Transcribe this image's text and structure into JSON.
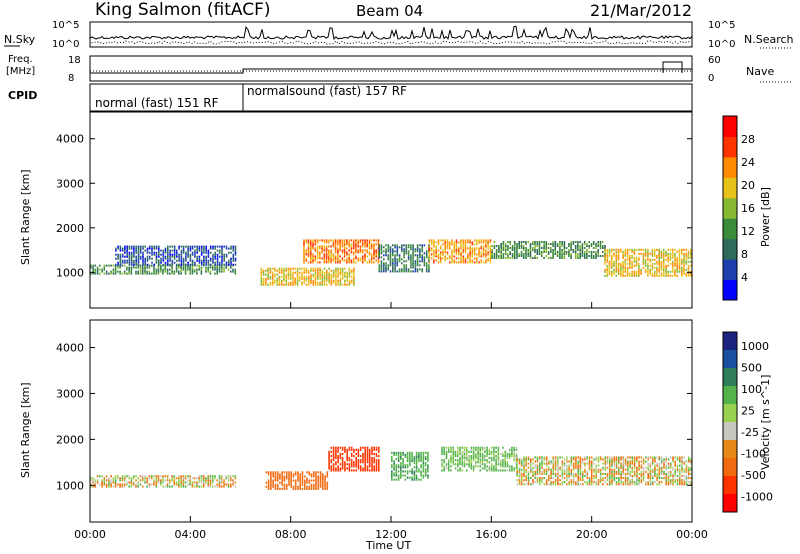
{
  "header": {
    "station": "King Salmon (fitACF)",
    "beam": "Beam 04",
    "date": "21/Mar/2012"
  },
  "top_panels": {
    "nsky_label": "N.Sky",
    "nsearch_label": "N.Search",
    "nsky_ticks": [
      "10^5",
      "10^0"
    ],
    "nsearch_ticks": [
      "10^5",
      "10^0"
    ],
    "freq_label_line1": "Freq.",
    "freq_label_line2": "[MHz]",
    "freq_ticks": [
      "18",
      "8"
    ],
    "nave_label": "Nave",
    "nave_ticks": [
      "60",
      "0"
    ],
    "cpid_label": "CPID",
    "cpid_modes": [
      "normal (fast) 151 RF",
      "normalsound (fast) 157 RF"
    ]
  },
  "colors": {
    "power_scale": [
      "#0000ff",
      "#1f3faf",
      "#2e6b5a",
      "#3a8c3a",
      "#86b832",
      "#e6c21a",
      "#ff8c00",
      "#ff3300",
      "#ff0000"
    ],
    "velocity_scale": [
      "#1a237e",
      "#1a4fa0",
      "#2e7d5b",
      "#52b34a",
      "#98d050",
      "#c8c8c0",
      "#e88818",
      "#f06a10",
      "#ff3300",
      "#ff0000"
    ]
  },
  "chart_data": [
    {
      "type": "heatmap",
      "title": "Power",
      "xlabel": "",
      "ylabel": "Slant Range [km]",
      "yticks": [
        "1000",
        "2000",
        "3000",
        "4000"
      ],
      "ylim": [
        200,
        4600
      ],
      "colorbar_label": "Power [dB]",
      "colorbar_ticks": [
        "4",
        "8",
        "12",
        "16",
        "20",
        "24",
        "28"
      ],
      "clim": [
        0,
        32
      ],
      "bands": [
        {
          "t0": 0.0,
          "t1": 5.8,
          "r0": 950,
          "r1": 1150,
          "value": 12
        },
        {
          "t0": 1.0,
          "t1": 5.8,
          "r0": 1150,
          "r1": 1600,
          "value": 6
        },
        {
          "t0": 6.8,
          "t1": 10.5,
          "r0": 700,
          "r1": 1100,
          "value": 20
        },
        {
          "t0": 8.5,
          "t1": 11.5,
          "r0": 1200,
          "r1": 1700,
          "value": 24
        },
        {
          "t0": 11.5,
          "t1": 13.5,
          "r0": 1000,
          "r1": 1600,
          "value": 10
        },
        {
          "t0": 13.5,
          "t1": 16.0,
          "r0": 1200,
          "r1": 1700,
          "value": 22
        },
        {
          "t0": 16.0,
          "t1": 20.5,
          "r0": 1300,
          "r1": 1700,
          "value": 12
        },
        {
          "t0": 20.5,
          "t1": 24.0,
          "r0": 900,
          "r1": 1500,
          "value": 20
        }
      ]
    },
    {
      "type": "heatmap",
      "title": "Velocity",
      "xlabel": "Time UT",
      "ylabel": "Slant Range [km]",
      "yticks": [
        "1000",
        "2000",
        "3000",
        "4000"
      ],
      "ylim": [
        200,
        4600
      ],
      "xticks": [
        "00:00",
        "04:00",
        "08:00",
        "12:00",
        "16:00",
        "20:00",
        "00:00"
      ],
      "xlim": [
        0,
        24
      ],
      "colorbar_label": "Velocity [m s^-1]",
      "colorbar_ticks": [
        "1000",
        "500",
        "100",
        "25",
        "-25",
        "-100",
        "-500",
        "-1000"
      ],
      "bands": [
        {
          "t0": 0.0,
          "t1": 5.8,
          "r0": 950,
          "r1": 1200,
          "value": 0
        },
        {
          "t0": 7.0,
          "t1": 9.5,
          "r0": 900,
          "r1": 1300,
          "value": -300
        },
        {
          "t0": 9.5,
          "t1": 11.5,
          "r0": 1300,
          "r1": 1800,
          "value": -700
        },
        {
          "t0": 12.0,
          "t1": 13.5,
          "r0": 1100,
          "r1": 1700,
          "value": 400
        },
        {
          "t0": 14.0,
          "t1": 17.0,
          "r0": 1300,
          "r1": 1800,
          "value": 150
        },
        {
          "t0": 17.0,
          "t1": 24.0,
          "r0": 1000,
          "r1": 1600,
          "value": 0
        }
      ]
    }
  ]
}
